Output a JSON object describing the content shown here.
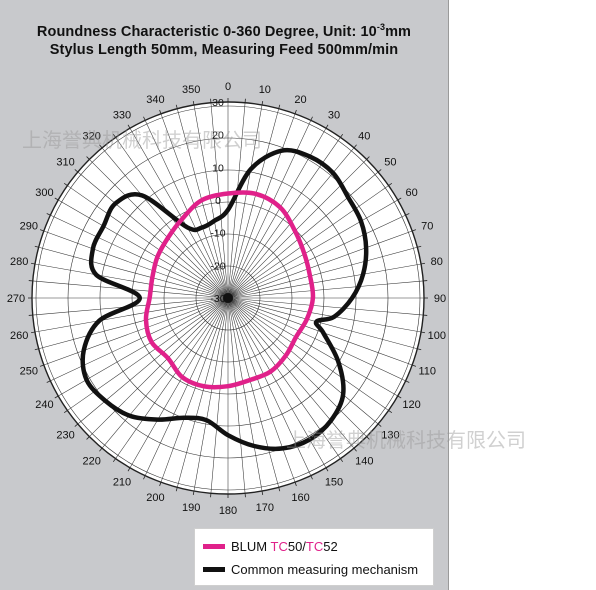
{
  "title_line1": "Roundness Characteristic 0-360 Degree, Unit: 10",
  "title_line1_sup": "-3",
  "title_line1_unit": "mm",
  "title_line2": "Stylus Length 50mm, Measuring Feed 500mm/min",
  "watermark_text": "上海誉典机械科技有限公司",
  "legend": {
    "item1_prefix": "BLUM ",
    "item1_tc1": "TC",
    "item1_num1": "50/",
    "item1_tc2": "TC",
    "item1_num2": "52",
    "item2": "Common measuring mechanism"
  },
  "colors": {
    "blum": "#e0218a",
    "common": "#111111",
    "panel": "#c8c9cc"
  },
  "chart_data": {
    "type": "polar",
    "angle_unit": "degree",
    "angle_ticks": [
      "0",
      "10",
      "20",
      "30",
      "40",
      "50",
      "60",
      "70",
      "80",
      "90",
      "100",
      "110",
      "120",
      "130",
      "140",
      "150",
      "160",
      "170",
      "180",
      "190",
      "200",
      "210",
      "220",
      "230",
      "240",
      "250",
      "260",
      "270",
      "280",
      "290",
      "300",
      "310",
      "320",
      "330",
      "340",
      "350"
    ],
    "radial_ticks": [
      "30",
      "20",
      "10",
      "0",
      "-10",
      "-20",
      "-30"
    ],
    "radial_range": [
      -30,
      30
    ],
    "series": [
      {
        "name": "BLUM TC50/TC52",
        "color": "#e0218a",
        "angles": [
          0,
          15,
          30,
          45,
          60,
          75,
          90,
          105,
          120,
          135,
          150,
          165,
          180,
          195,
          210,
          225,
          240,
          255,
          270,
          285,
          300,
          315,
          330,
          345
        ],
        "values": [
          2,
          3,
          2,
          -1,
          -3,
          -4,
          -4,
          -5,
          -6,
          -5,
          -4,
          -4,
          -3,
          -2,
          -2,
          -4,
          -3,
          -4,
          -6,
          -6,
          -5,
          -4,
          -2,
          1
        ]
      },
      {
        "name": "Common measuring mechanism",
        "color": "#111111",
        "angles": [
          0,
          10,
          20,
          30,
          40,
          50,
          60,
          70,
          80,
          90,
          100,
          105,
          110,
          120,
          130,
          140,
          150,
          160,
          170,
          180,
          190,
          200,
          210,
          220,
          230,
          240,
          250,
          260,
          270,
          280,
          290,
          300,
          310,
          320,
          330,
          340,
          350
        ],
        "values": [
          -3,
          10,
          18,
          20,
          20,
          18,
          17,
          15,
          12,
          8,
          3,
          -2,
          1,
          9,
          16,
          19,
          20,
          19,
          16,
          12,
          8,
          9,
          13,
          17,
          19,
          20,
          17,
          10,
          -3,
          11,
          14,
          14,
          15,
          11,
          -5,
          -7,
          -6
        ]
      }
    ]
  }
}
